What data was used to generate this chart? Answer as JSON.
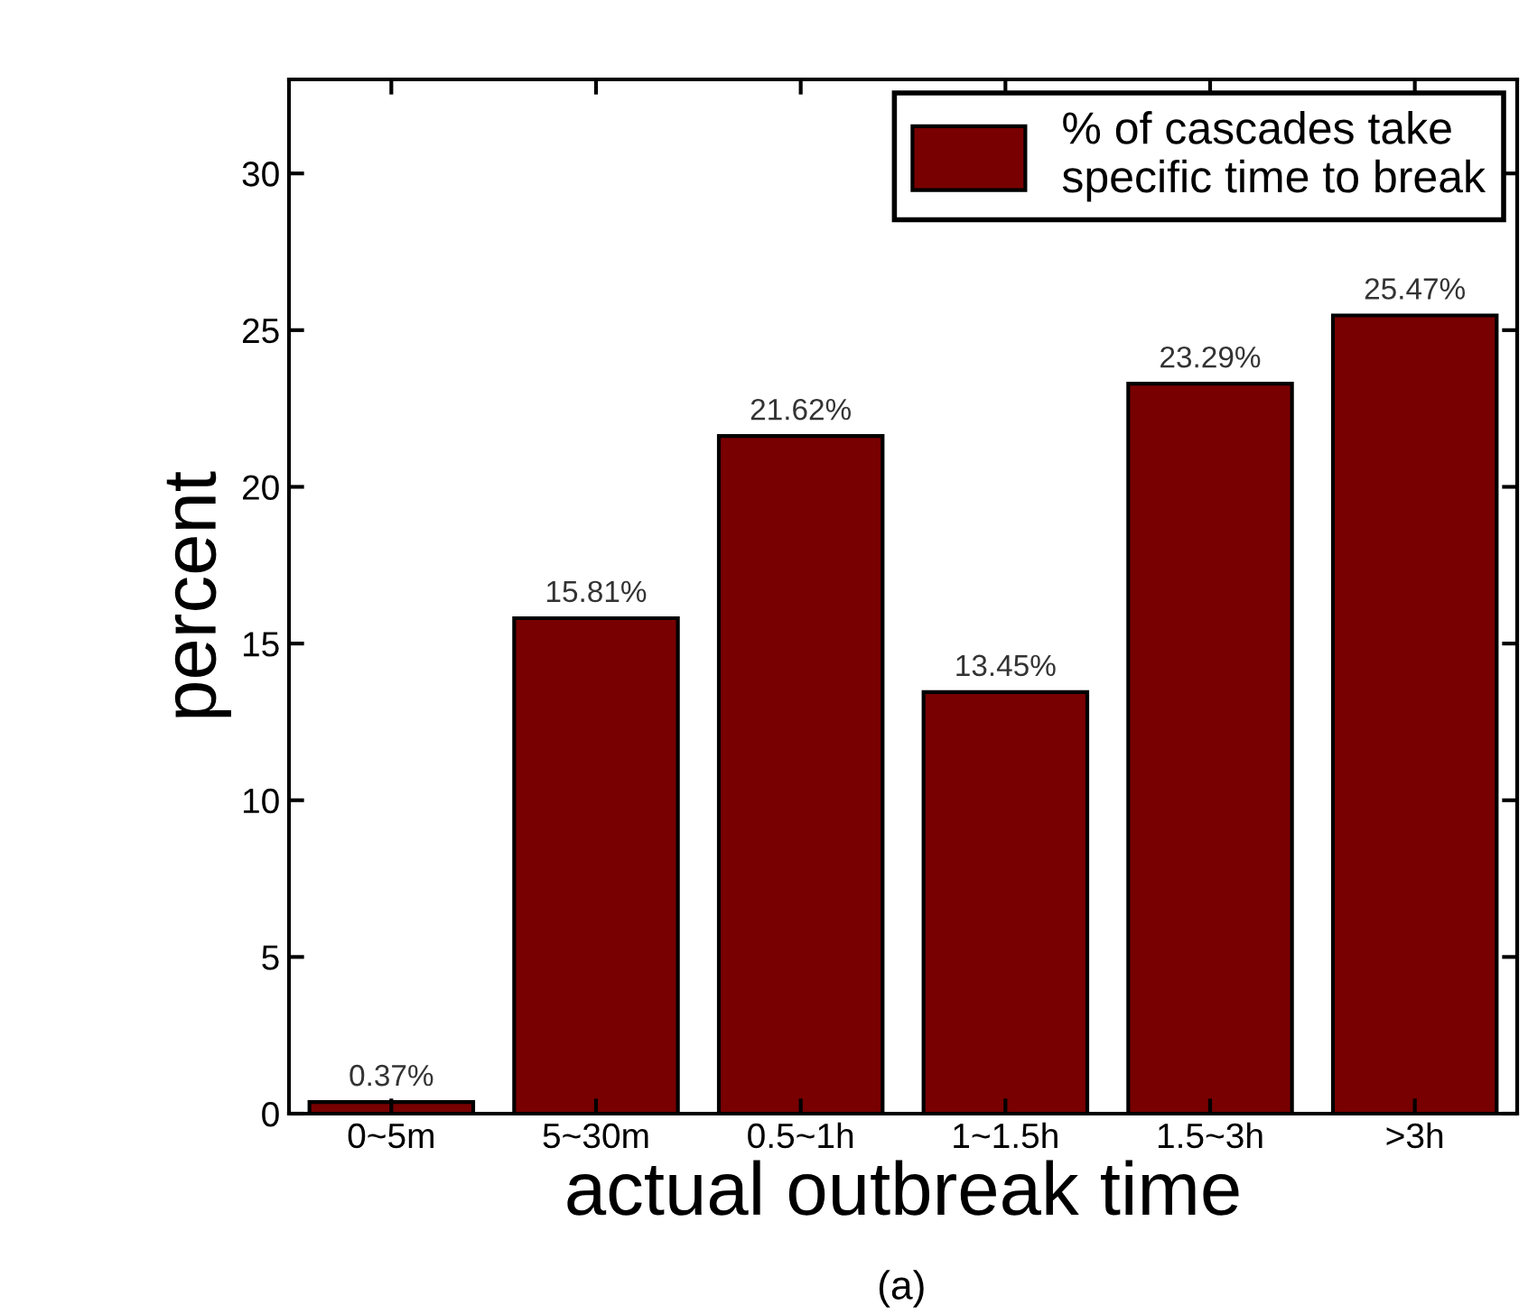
{
  "chart_data": {
    "type": "bar",
    "xlabel": "actual outbreak time",
    "ylabel": "percent",
    "categories": [
      "0~5m",
      "5~30m",
      "0.5~1h",
      "1~1.5h",
      "1.5~3h",
      ">3h"
    ],
    "series": [
      {
        "name": "% of cascades take\nspecific time to break",
        "color": "#780000",
        "values": [
          0.37,
          15.81,
          21.62,
          13.45,
          23.29,
          25.47
        ]
      }
    ],
    "value_labels": [
      "0.37%",
      "15.81%",
      "21.62%",
      "13.45%",
      "23.29%",
      "25.47%"
    ],
    "ylim": [
      0,
      33
    ],
    "yticks": [
      0,
      5,
      10,
      15,
      20,
      25,
      30
    ],
    "grid": false,
    "legend": "top right",
    "annotations": [
      "(a)"
    ]
  }
}
